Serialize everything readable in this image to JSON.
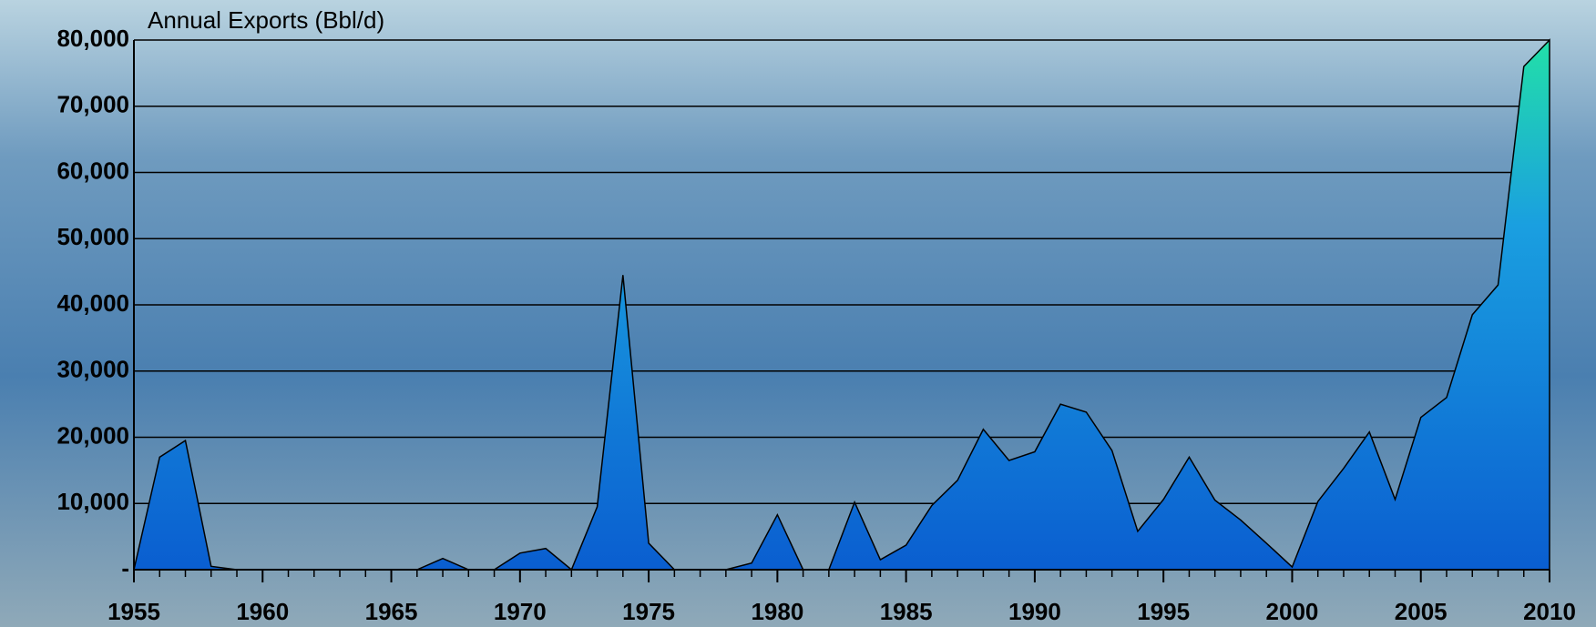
{
  "chart_data": {
    "type": "area",
    "title": "Annual Exports (Bbl/d)",
    "x": [
      1955,
      1956,
      1957,
      1958,
      1959,
      1960,
      1961,
      1962,
      1963,
      1964,
      1965,
      1966,
      1967,
      1968,
      1969,
      1970,
      1971,
      1972,
      1973,
      1974,
      1975,
      1976,
      1977,
      1978,
      1979,
      1980,
      1981,
      1982,
      1983,
      1984,
      1985,
      1986,
      1987,
      1988,
      1989,
      1990,
      1991,
      1992,
      1993,
      1994,
      1995,
      1996,
      1997,
      1998,
      1999,
      2000,
      2001,
      2002,
      2003,
      2004,
      2005,
      2006,
      2007,
      2008,
      2009,
      2010
    ],
    "values": [
      0,
      17000,
      19500,
      500,
      0,
      0,
      0,
      0,
      0,
      0,
      0,
      0,
      1700,
      0,
      0,
      2500,
      3200,
      0,
      9500,
      44500,
      4000,
      0,
      0,
      0,
      1000,
      8300,
      0,
      0,
      10200,
      1500,
      3700,
      9700,
      13500,
      21200,
      16500,
      17800,
      25000,
      23800,
      18000,
      5800,
      10600,
      17000,
      10500,
      7500,
      4000,
      400,
      10300,
      15300,
      20800,
      10600,
      23000,
      26000,
      38500,
      43000,
      76000,
      80000
    ],
    "color": "#0a6fd6",
    "xlim": [
      1955,
      2010
    ],
    "xticks": [
      1955,
      1960,
      1965,
      1970,
      1975,
      1980,
      1985,
      1990,
      1995,
      2000,
      2005,
      2010
    ],
    "ylim": [
      0,
      80000
    ],
    "yticks": [
      {
        "value": 0,
        "label": "-"
      },
      {
        "value": 10000,
        "label": "10,000"
      },
      {
        "value": 20000,
        "label": "20,000"
      },
      {
        "value": 30000,
        "label": "30,000"
      },
      {
        "value": 40000,
        "label": "40,000"
      },
      {
        "value": 50000,
        "label": "50,000"
      },
      {
        "value": 60000,
        "label": "60,000"
      },
      {
        "value": 70000,
        "label": "70,000"
      },
      {
        "value": 80000,
        "label": "80,000"
      }
    ],
    "grid": true
  }
}
